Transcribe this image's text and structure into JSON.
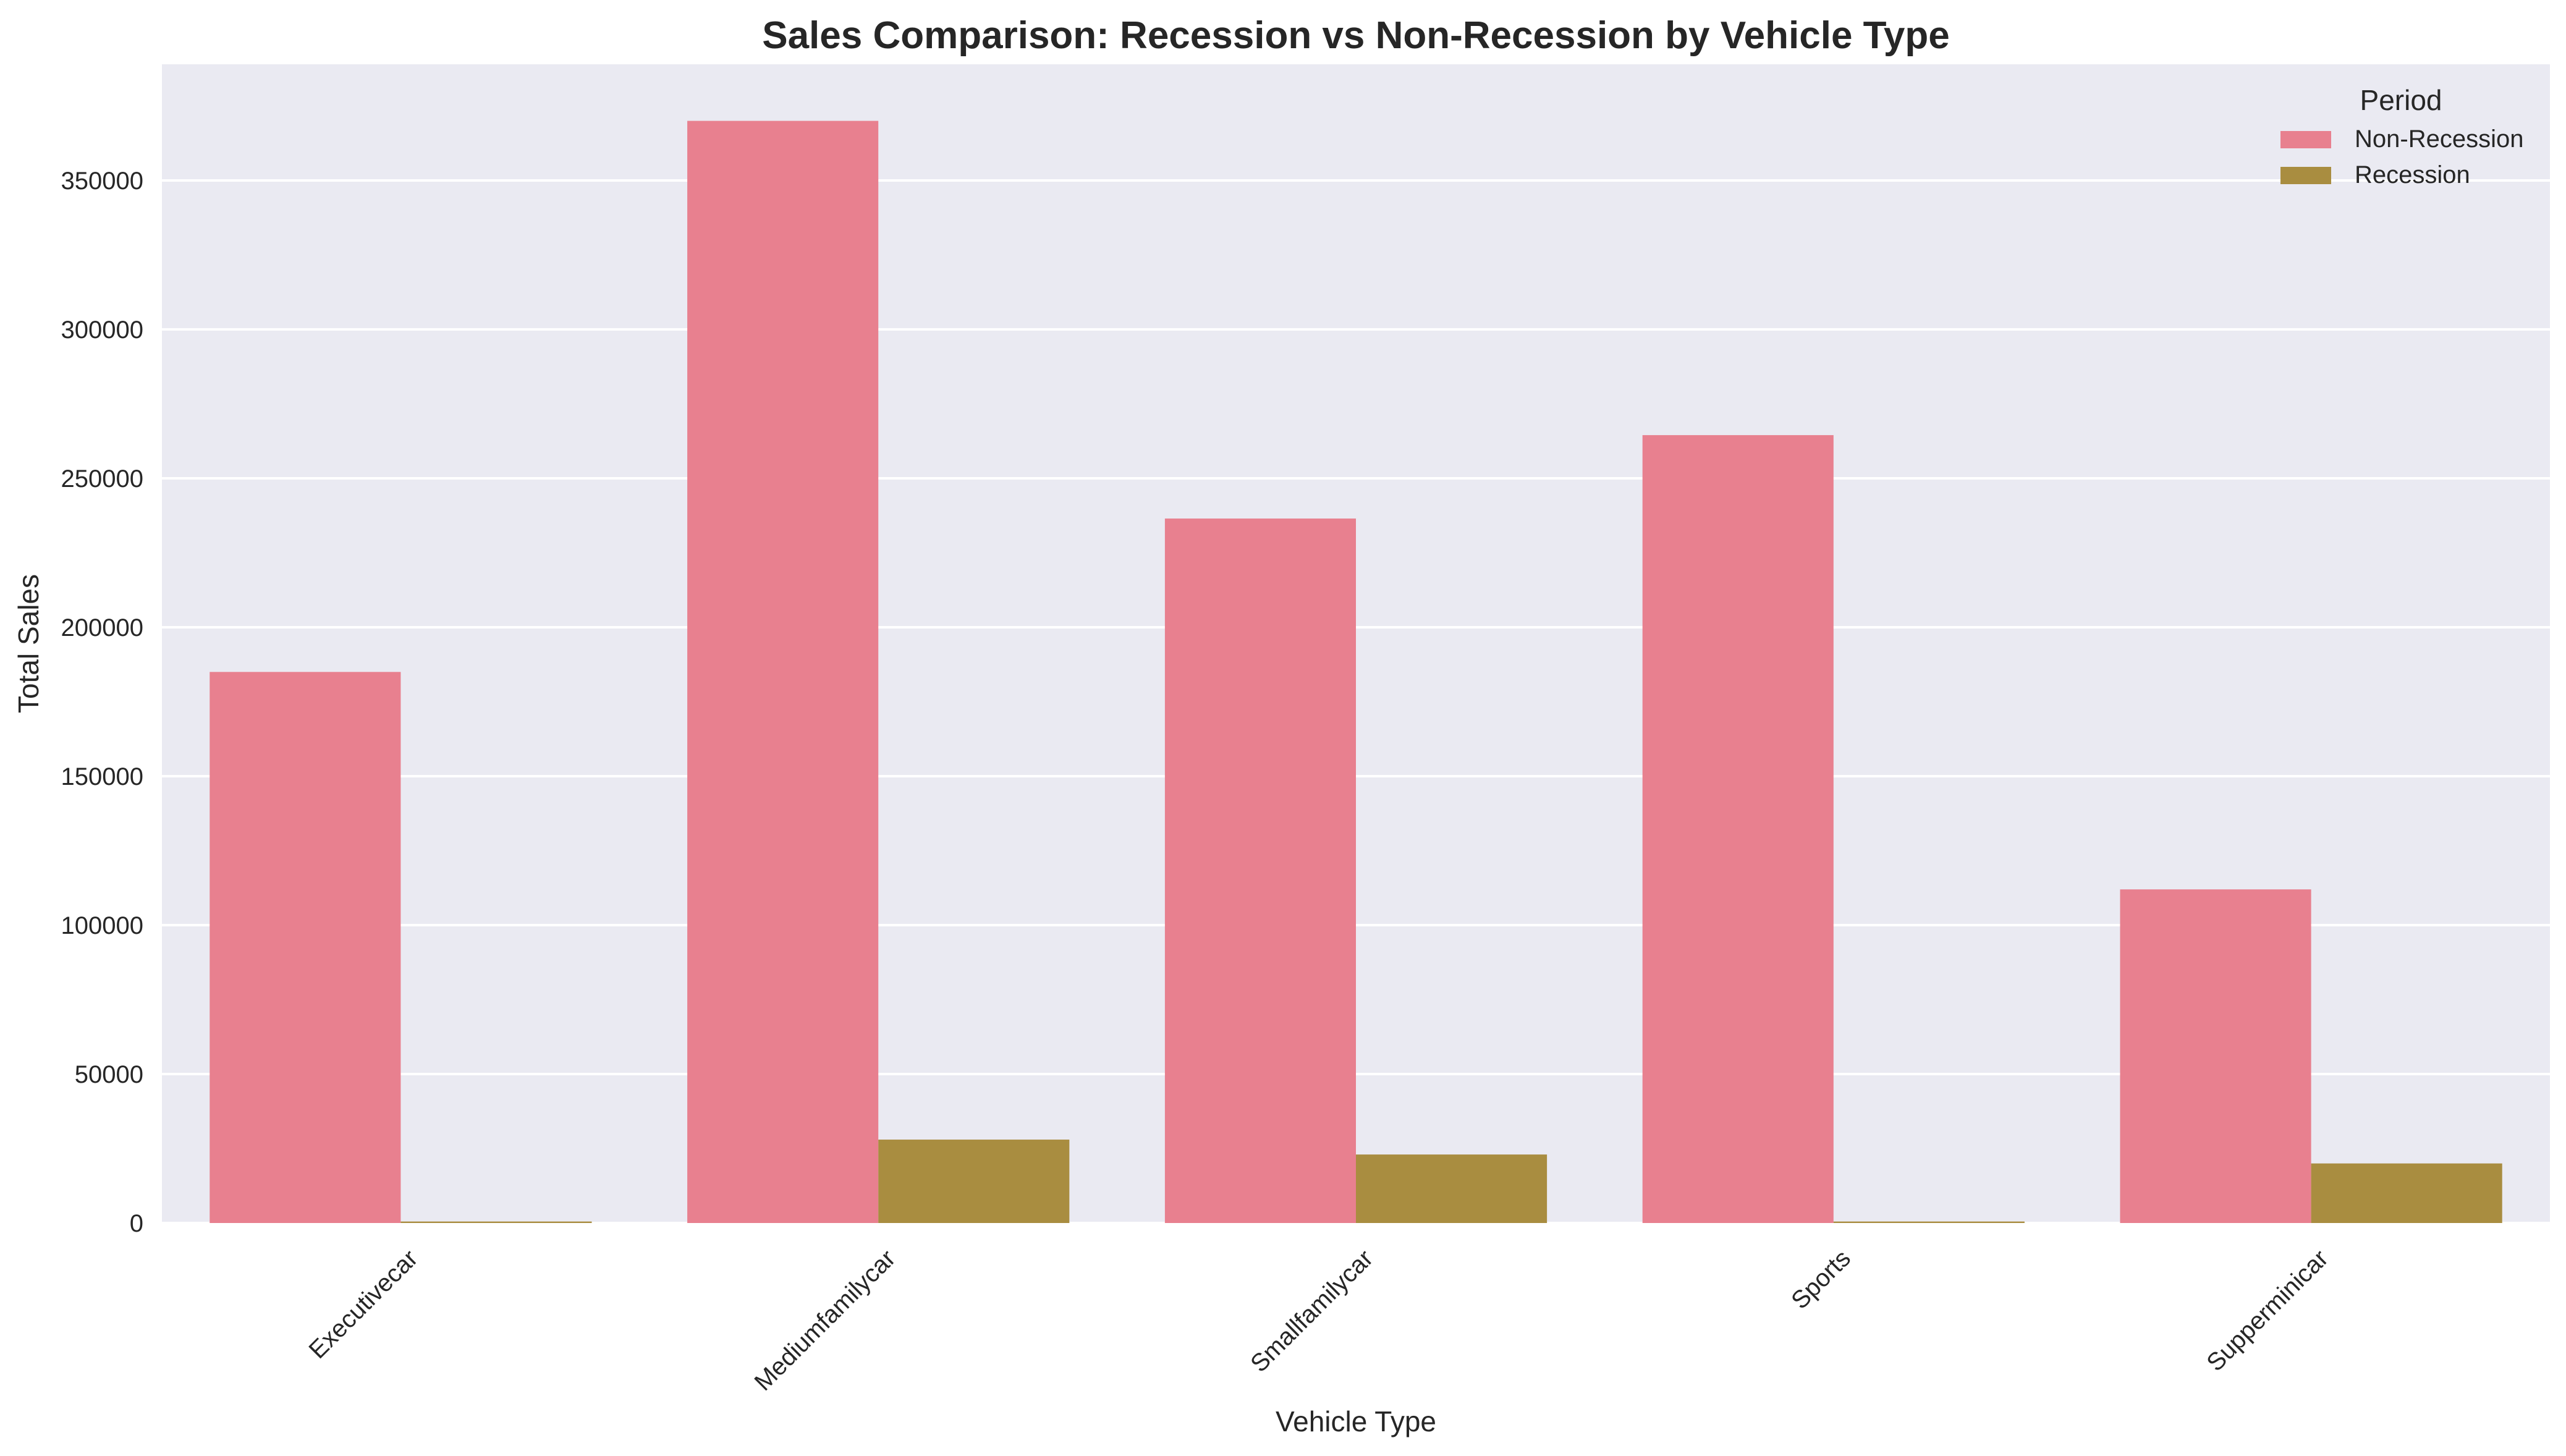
{
  "chart_data": {
    "type": "bar",
    "title": "Sales Comparison: Recession vs Non-Recession by Vehicle Type",
    "xlabel": "Vehicle Type",
    "ylabel": "Total Sales",
    "categories": [
      "Executivecar",
      "Mediumfamilycar",
      "Smallfamilycar",
      "Sports",
      "Supperminicar"
    ],
    "series": [
      {
        "name": "Non-Recession",
        "color": "#e8808f",
        "values": [
          185000,
          370000,
          236500,
          264500,
          112000
        ]
      },
      {
        "name": "Recession",
        "color": "#a98d40",
        "values": [
          500,
          28000,
          23000,
          500,
          20000
        ]
      }
    ],
    "ylim": [
      0,
      389000
    ],
    "yticks": [
      0,
      50000,
      100000,
      150000,
      200000,
      250000,
      300000,
      350000
    ],
    "ytick_labels": [
      "0",
      "50000",
      "100000",
      "150000",
      "200000",
      "250000",
      "300000",
      "350000"
    ],
    "legend": {
      "title": "Period",
      "placement": "top-right"
    },
    "grid": true,
    "background": "#eaeaf2"
  }
}
